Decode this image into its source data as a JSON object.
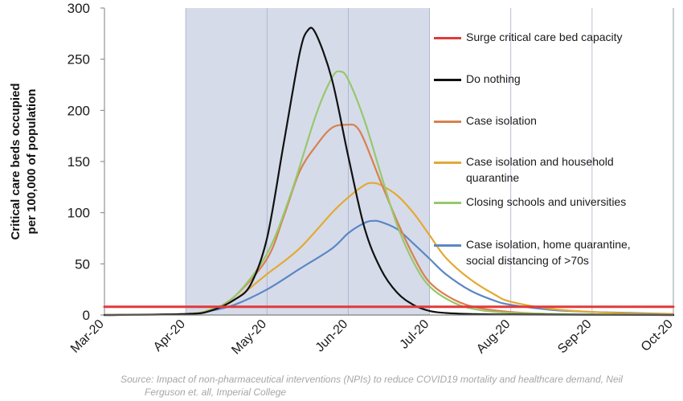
{
  "chart_data": {
    "type": "line",
    "ylabel": "Critical care beds occupied per 100,000 of population",
    "ylabel_lines": [
      "Critical care beds occupied",
      "per 100,000 of population"
    ],
    "xlabel": "",
    "ylim": [
      0,
      300
    ],
    "yticks": [
      0,
      50,
      100,
      150,
      200,
      250,
      300
    ],
    "x_categories": [
      "Mar-20",
      "Apr-20",
      "May-20",
      "Jun-20",
      "Jul-20",
      "Aug-20",
      "Sep-20",
      "Oct-20"
    ],
    "shaded_region": {
      "from": "Apr-20",
      "to": "Jul-20"
    },
    "series": [
      {
        "name": "Surge critical care bed capacity",
        "color": "#e03a3a",
        "x": [
          0,
          7
        ],
        "values": [
          8,
          8
        ]
      },
      {
        "name": "Do nothing",
        "color": "#111111",
        "x": [
          0,
          1,
          1.3,
          1.6,
          1.8,
          2.0,
          2.2,
          2.4,
          2.5,
          2.6,
          2.8,
          3.0,
          3.2,
          3.4,
          3.6,
          3.8,
          4.0,
          4.2,
          4.5,
          5.0,
          7.0
        ],
        "values": [
          0,
          1,
          4,
          15,
          30,
          75,
          165,
          255,
          278,
          275,
          230,
          155,
          85,
          45,
          22,
          10,
          4,
          2,
          1,
          0.5,
          0
        ]
      },
      {
        "name": "Case isolation",
        "color": "#d9804e",
        "x": [
          0,
          1,
          1.3,
          1.6,
          2.0,
          2.2,
          2.4,
          2.6,
          2.8,
          3.0,
          3.1,
          3.2,
          3.4,
          3.6,
          3.8,
          4.0,
          4.3,
          4.6,
          5.0,
          5.5,
          6.0,
          7.0
        ],
        "values": [
          0,
          1,
          5,
          18,
          55,
          95,
          140,
          165,
          183,
          186,
          184,
          170,
          130,
          92,
          58,
          32,
          15,
          7,
          3,
          1,
          0.5,
          0
        ]
      },
      {
        "name": "Case isolation and household quarantine",
        "color": "#e2aa33",
        "x": [
          0,
          1,
          1.3,
          1.6,
          2.0,
          2.4,
          2.8,
          3.0,
          3.2,
          3.3,
          3.4,
          3.6,
          3.8,
          4.0,
          4.2,
          4.5,
          4.8,
          5.0,
          5.5,
          6.0,
          6.5,
          7.0
        ],
        "values": [
          0,
          1,
          5,
          15,
          40,
          65,
          100,
          115,
          127,
          129,
          127,
          117,
          100,
          78,
          56,
          35,
          20,
          13,
          6,
          3,
          1.5,
          1
        ]
      },
      {
        "name": "Closing schools and universities",
        "color": "#96c86c",
        "x": [
          0,
          1,
          1.3,
          1.6,
          2.0,
          2.3,
          2.6,
          2.8,
          2.9,
          3.0,
          3.2,
          3.4,
          3.6,
          3.8,
          4.0,
          4.3,
          4.6,
          5.0,
          5.5,
          6.0,
          7.0
        ],
        "values": [
          0,
          1,
          5,
          18,
          60,
          120,
          195,
          232,
          238,
          230,
          190,
          138,
          88,
          52,
          28,
          12,
          5,
          2,
          1,
          0.5,
          0
        ]
      },
      {
        "name": "Case isolation, home quarantine, social distancing of >70s",
        "color": "#5b87c5",
        "x": [
          0,
          1,
          1.3,
          1.6,
          2.0,
          2.4,
          2.8,
          3.0,
          3.2,
          3.3,
          3.4,
          3.6,
          3.8,
          4.0,
          4.2,
          4.5,
          4.8,
          5.0,
          5.5,
          6.0,
          6.5,
          7.0
        ],
        "values": [
          0,
          1,
          4,
          10,
          25,
          45,
          65,
          80,
          90,
          92,
          91,
          84,
          70,
          55,
          40,
          24,
          14,
          10,
          5,
          3,
          2,
          1
        ]
      }
    ],
    "legend_position": "right"
  },
  "legend_labels": {
    "s0": "Surge critical care bed capacity",
    "s1": "Do nothing",
    "s2": "Case isolation",
    "s3a": "Case isolation and household",
    "s3b": "quarantine",
    "s4": "Closing schools and universities",
    "s5a": "Case isolation, home quarantine,",
    "s5b": "social distancing of >70s"
  },
  "source": {
    "line1": "Source: Impact of non-pharmaceutical interventions (NPIs) to reduce COVID19 mortality and healthcare demand, Neil",
    "line2": "Ferguson et. all, Imperial College"
  },
  "colors": {
    "shade": "#d6dbea",
    "axis": "#7f7f7f",
    "grid": "#a8b0c8"
  }
}
